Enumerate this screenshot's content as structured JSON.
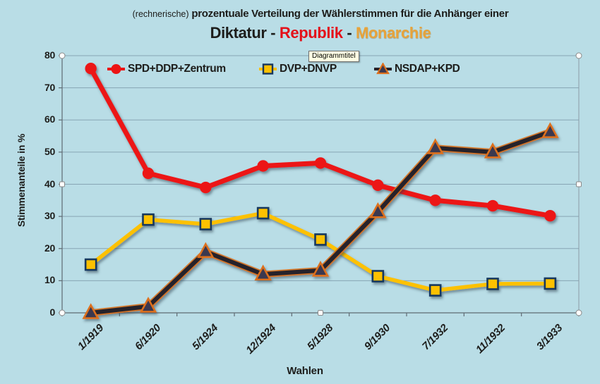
{
  "page": {
    "background": "#b9dde6"
  },
  "title": {
    "prefix": "(rechnerische)",
    "line1": "prozentuale Verteilung der Wählerstimmen für die Anhänger einer",
    "separator": " - ",
    "line2": [
      {
        "text": "Diktatur",
        "color": "#1d1d1b"
      },
      {
        "text": "Republik",
        "color": "#e41019"
      },
      {
        "text": "Monarchie",
        "color": "#e7a33a"
      }
    ]
  },
  "tooltip": "Diagrammtitel",
  "chart_data": {
    "type": "line",
    "title": "(rechnerische) prozentuale Verteilung der Wählerstimmen für die Anhänger einer Diktatur - Republik - Monarchie",
    "xlabel": "Wahlen",
    "ylabel": "Stimmenanteile in %",
    "ylim": [
      0,
      80
    ],
    "ytick_step": 10,
    "grid": true,
    "legend_position": "top",
    "categories": [
      "1/1919",
      "6/1920",
      "5/1924",
      "12/1924",
      "5/1928",
      "9/1930",
      "7/1932",
      "11/1932",
      "3/1933"
    ],
    "series": [
      {
        "name": "SPD+DDP+Zentrum",
        "marker": "circle",
        "color": "#ec1414",
        "line_width": 7,
        "values": [
          76,
          43.4,
          39,
          45.7,
          46.6,
          39.7,
          35,
          33.3,
          30.2
        ]
      },
      {
        "name": "DVP+DNVP",
        "marker": "square",
        "color": "#fdc101",
        "marker_border": "#17375e",
        "line_width": 5.5,
        "values": [
          15,
          29,
          27.6,
          31,
          22.8,
          11.4,
          7,
          9,
          9.1
        ]
      },
      {
        "name": "NSDAP+KPD",
        "marker": "triangle",
        "color": "#26222a",
        "marker_fill": "#3b3950",
        "marker_border": "#dd6f1c",
        "halo_color": "#d86f19",
        "line_width": 6,
        "values": [
          0,
          2,
          19,
          12,
          13.2,
          31.4,
          51.3,
          50,
          56.3
        ]
      }
    ],
    "colors": {
      "gridline": "#87a5b4",
      "axis": "#5f6b73",
      "plot_border": "#8a9aa5",
      "handle_fill": "#ffffff",
      "handle_border": "#8a8a8a"
    }
  }
}
